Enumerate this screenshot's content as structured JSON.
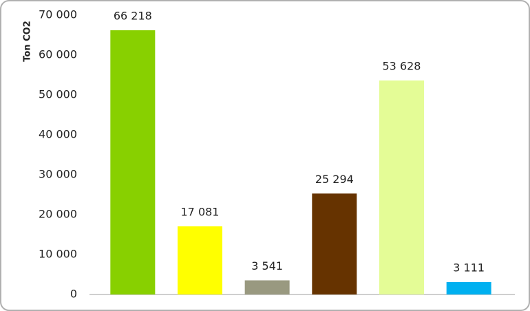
{
  "chart_data": {
    "type": "bar",
    "y_axis_label": "Ton CO2",
    "categories": [
      null,
      null,
      null,
      null,
      null,
      null
    ],
    "values": [
      66218,
      17081,
      3541,
      25294,
      53628,
      3111
    ],
    "value_labels": [
      "66 218",
      "17 081",
      "3 541",
      "25 294",
      "53 628",
      "3 111"
    ],
    "colors": [
      "#88d000",
      "#ffff00",
      "#999980",
      "#663300",
      "#e4fc96",
      "#00b0f0"
    ],
    "ylim": [
      0,
      70000
    ],
    "yticks": [
      0,
      {
        "value": 10000,
        "label": "10 000"
      },
      {
        "value": 20000,
        "label": "20 000"
      },
      {
        "value": 30000,
        "label": "30 000"
      },
      {
        "value": 40000,
        "label": "40 000"
      },
      {
        "value": 50000,
        "label": "50 000"
      },
      {
        "value": 60000,
        "label": "60 000"
      },
      {
        "value": 70000,
        "label": "70 000"
      }
    ],
    "grid": false
  }
}
